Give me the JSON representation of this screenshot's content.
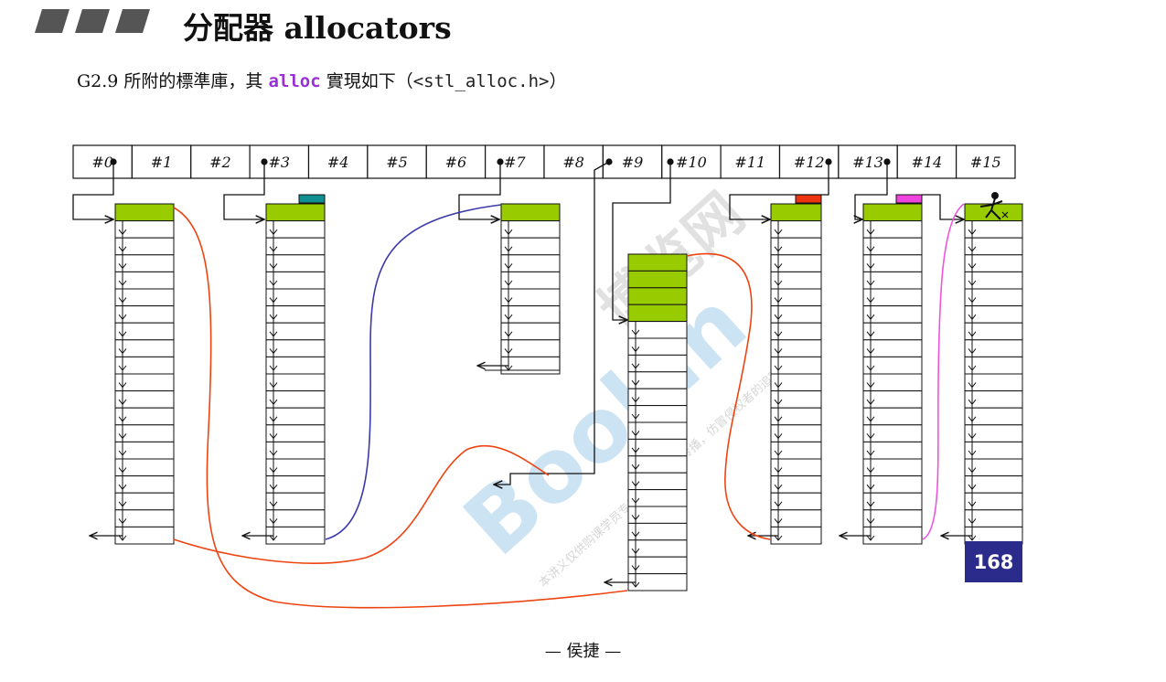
{
  "title": "分配器 allocators",
  "subtitle": {
    "prefix": "G2.9 所附的標準庫，其 ",
    "keyword": "alloc",
    "middle": " 實現如下（",
    "header": "<stl_alloc.h>",
    "suffix": "）"
  },
  "free_list_labels": [
    "#0",
    "#1",
    "#2",
    "#3",
    "#4",
    "#5",
    "#6",
    "#7",
    "#8",
    "#9",
    "#10",
    "#11",
    "#12",
    "#13",
    "#14",
    "#15"
  ],
  "badge": "168",
  "footer": "— 侯捷 —",
  "watermark": {
    "latin": "Boolan",
    "cjk": "博览网",
    "notice": "本讲义仅供购课学员专用，请勿线上传播，仿冒侵权者的追究与智识之"
  },
  "colors": {
    "block_head": "#99cc00",
    "teal_marker": "#0f8f8f",
    "red_marker": "#ee3311",
    "pink_marker": "#ee44dd",
    "badge_bg": "#2b2b8c",
    "link_orange": "#ee4411",
    "link_blue": "#3a3aaa",
    "link_pink": "#ee55dd",
    "watermark": "#1e82d2"
  }
}
